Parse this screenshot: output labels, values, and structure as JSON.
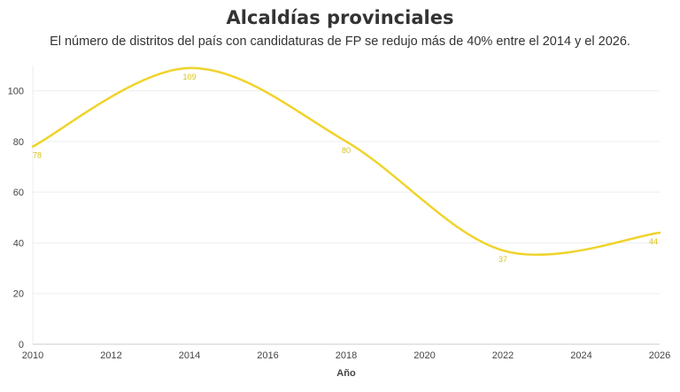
{
  "chart_data": {
    "type": "line",
    "title": "Alcaldías provinciales",
    "subtitle": "El número de distritos del país con candidaturas de FP se redujo más de 40% entre el 2014 y el 2026.",
    "xlabel": "Año",
    "ylabel": "",
    "x": [
      2010,
      2014,
      2018,
      2022,
      2026
    ],
    "series": [
      {
        "values": [
          78,
          109,
          80,
          37,
          44
        ],
        "color": "#f0d32a"
      }
    ],
    "data_labels": [
      "78",
      "109",
      "80",
      "37",
      "44"
    ],
    "xlim": [
      2010,
      2026
    ],
    "ylim": [
      0,
      110
    ],
    "xticks": [
      "2010",
      "2012",
      "2014",
      "2016",
      "2018",
      "2020",
      "2022",
      "2024",
      "2026"
    ],
    "yticks": [
      "0",
      "20",
      "40",
      "60",
      "80",
      "100"
    ],
    "grid": true,
    "legend": "none"
  }
}
